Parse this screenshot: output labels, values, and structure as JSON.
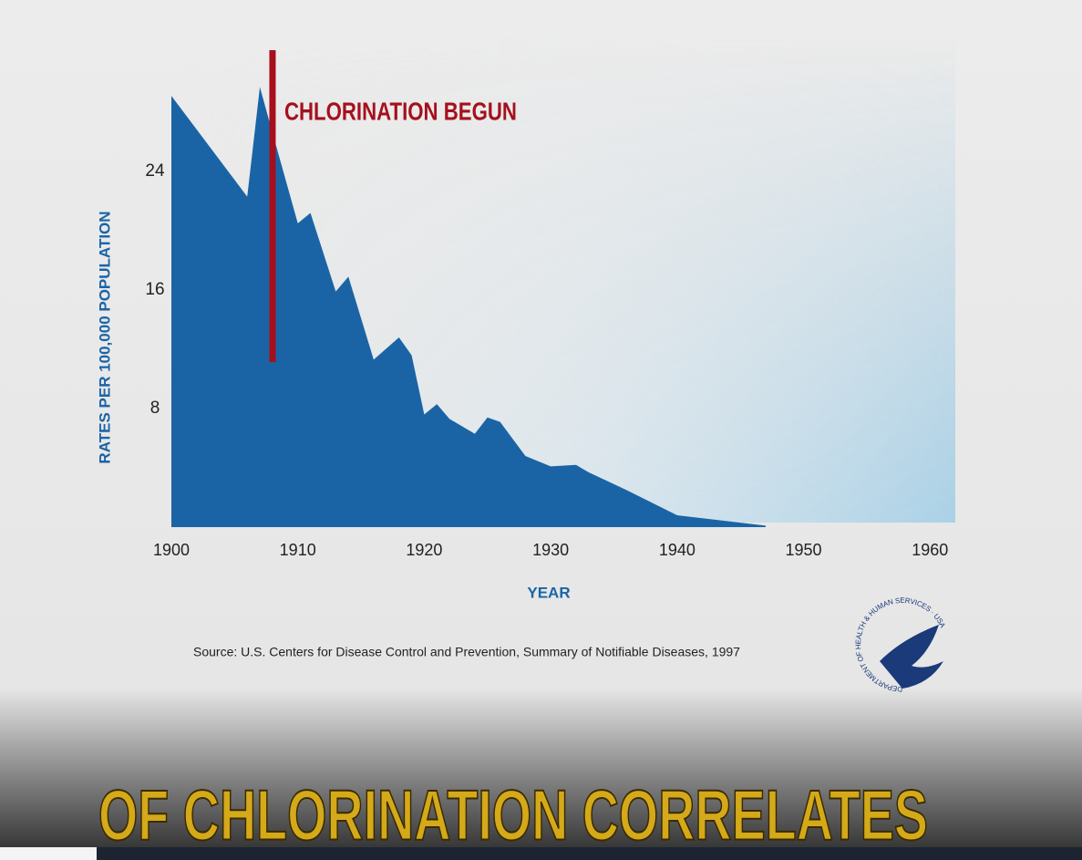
{
  "chart_data": {
    "type": "area",
    "y_label": "RATES PER 100,000 POPULATION",
    "x_label": "YEAR",
    "source": "Source: U.S. Centers for Disease Control and Prevention, Summary of Notifiable Diseases, 1997",
    "annotation": {
      "text": "CHLORINATION BEGUN",
      "x": 1908
    },
    "x": [
      1900,
      1906,
      1907,
      1908,
      1910,
      1911,
      1913,
      1914,
      1916,
      1918,
      1919,
      1920,
      1921,
      1922,
      1924,
      1925,
      1926,
      1928,
      1930,
      1932,
      1933,
      1936,
      1940,
      1944,
      1947
    ],
    "values": [
      29.1,
      22.3,
      29.7,
      26.6,
      20.5,
      21.2,
      15.9,
      16.9,
      11.3,
      12.8,
      11.6,
      7.6,
      8.3,
      7.3,
      6.3,
      7.4,
      7.1,
      4.8,
      4.1,
      4.2,
      3.7,
      2.5,
      0.8,
      0.4,
      0.1
    ],
    "color": "#1a64a6",
    "xlim": [
      1900,
      1962
    ],
    "ylim": [
      0,
      32
    ],
    "xticks": [
      1900,
      1910,
      1920,
      1930,
      1940,
      1950,
      1960
    ],
    "yticks": [
      8,
      16,
      24
    ]
  },
  "logo_text": "DEPARTMENT OF HEALTH & HUMAN SERVICES · USA",
  "caption": "OF CHLORINATION CORRELATES"
}
